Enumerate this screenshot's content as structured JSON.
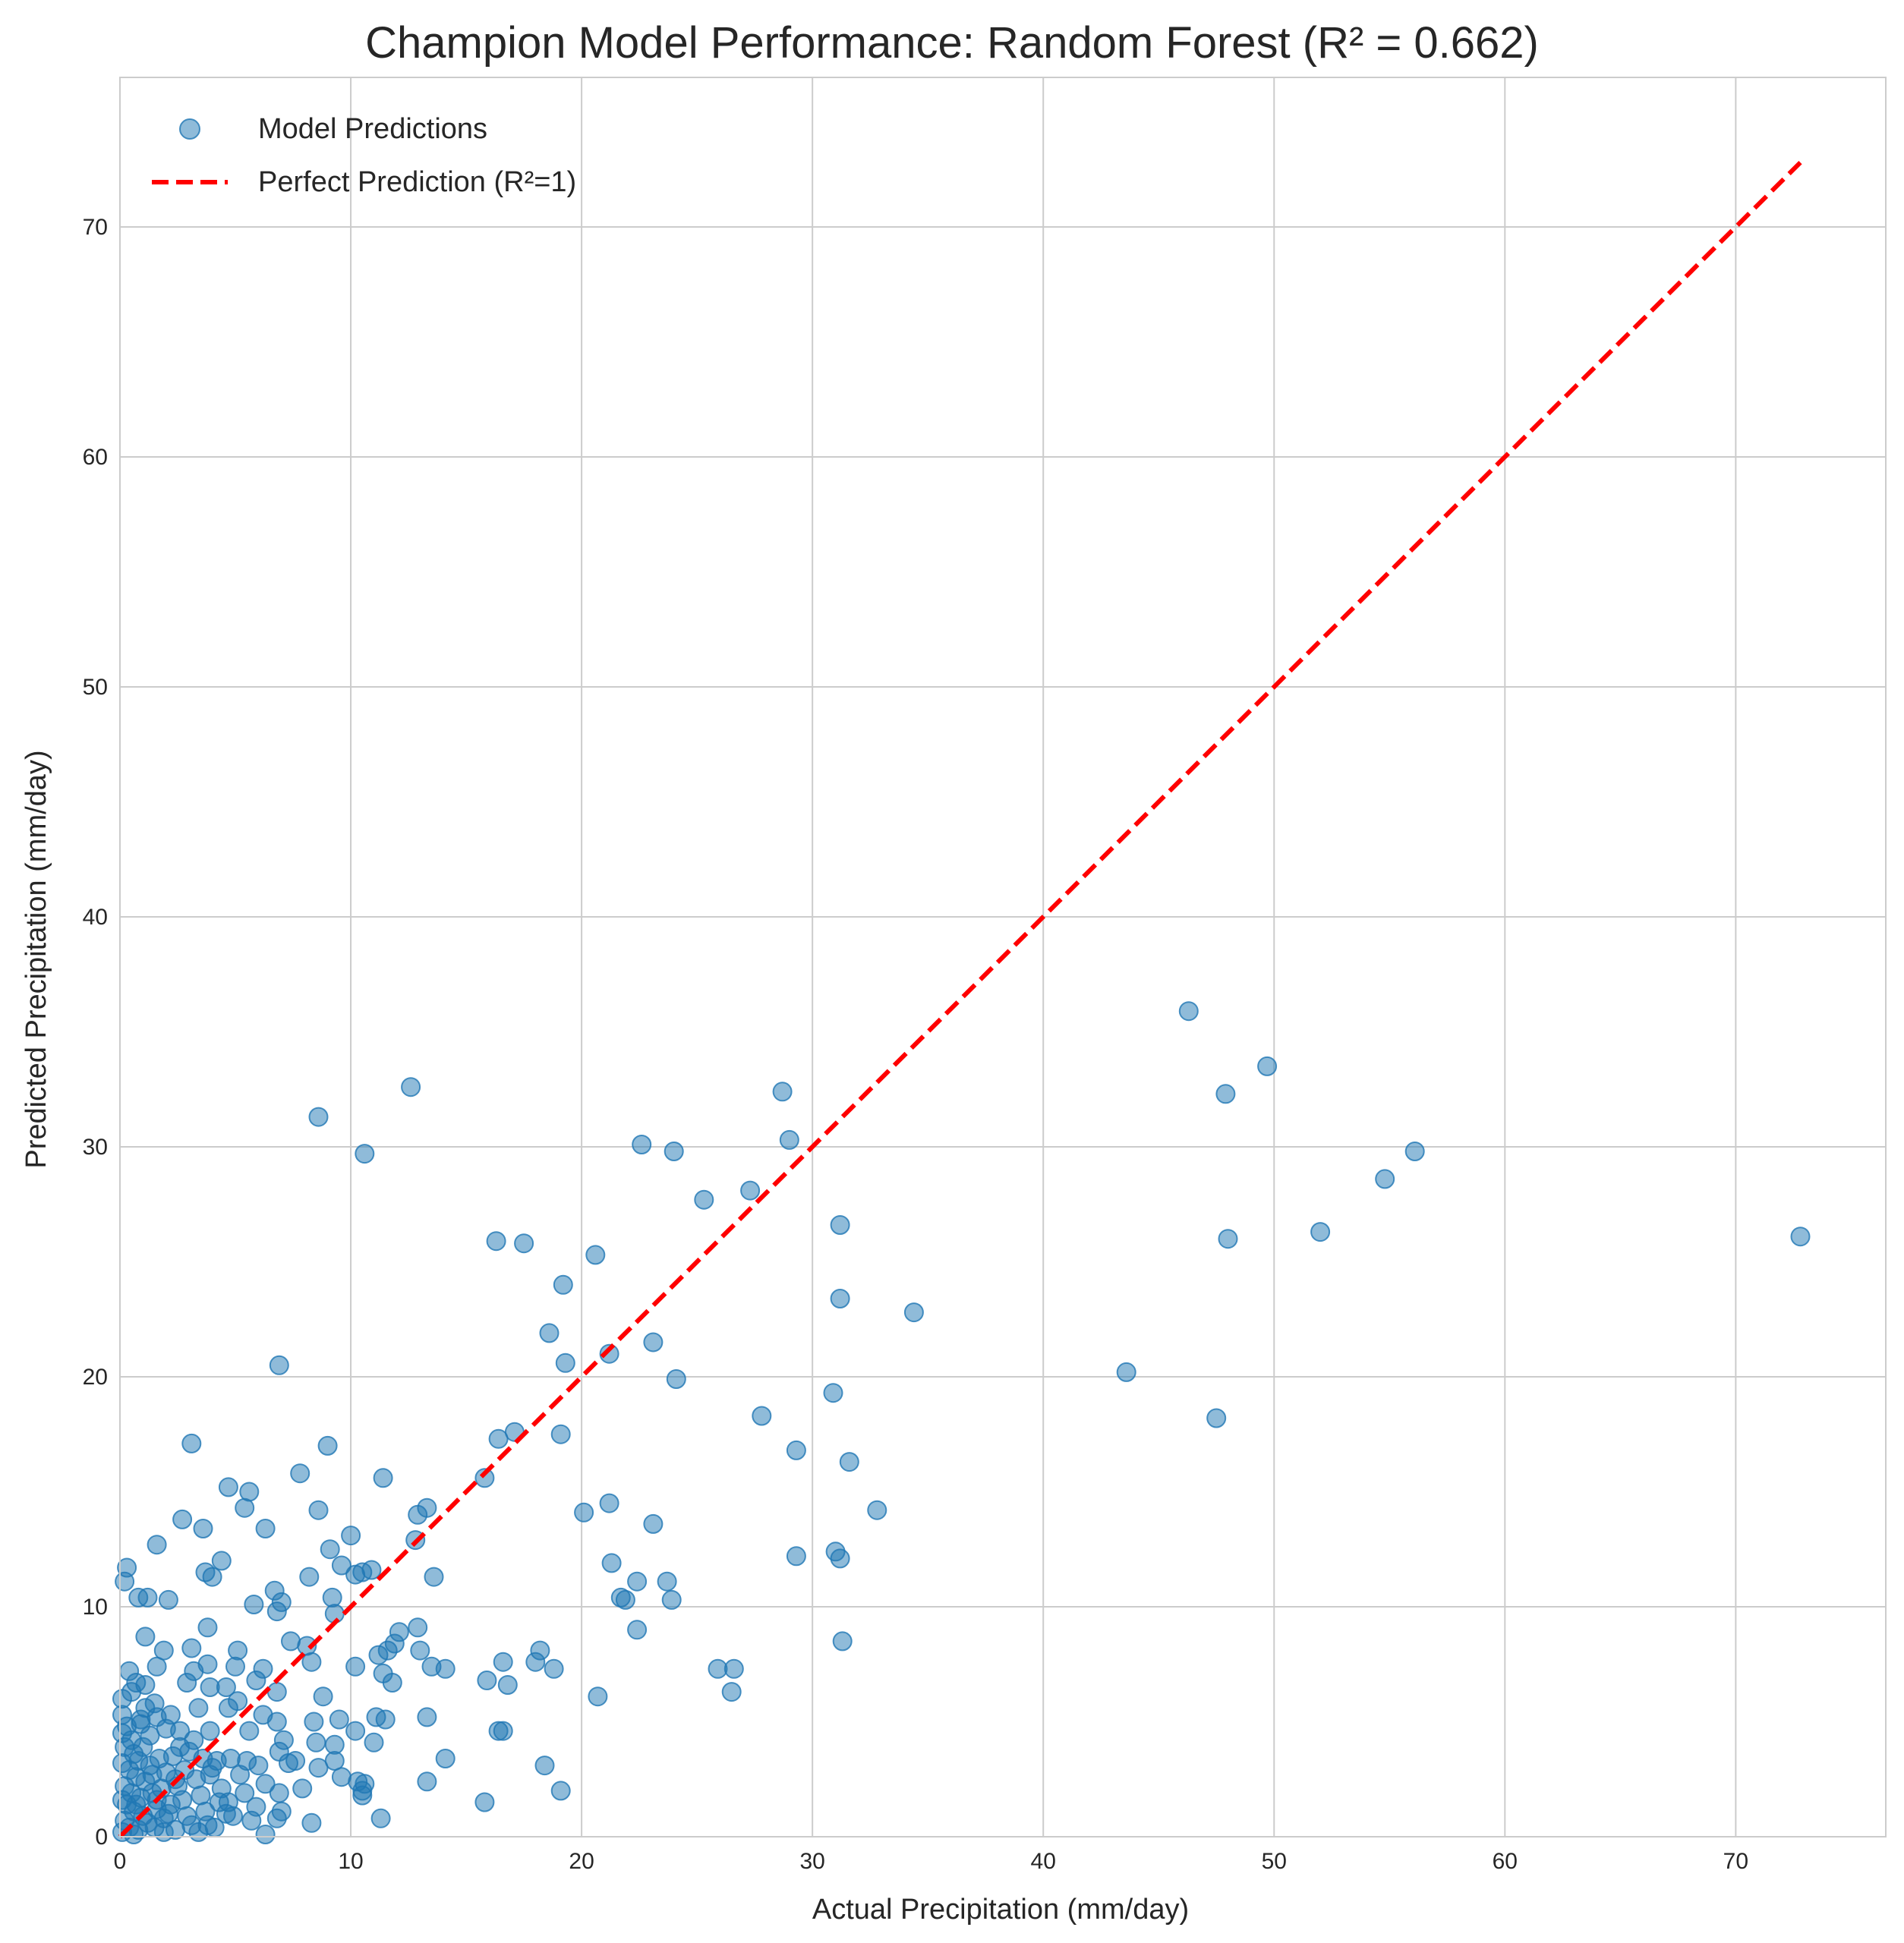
{
  "chart_data": {
    "type": "scatter",
    "title": "Champion Model Performance: Random Forest (R² = 0.662)",
    "xlabel": "Actual Precipitation (mm/day)",
    "ylabel": "Predicted Precipitation (mm/day)",
    "xlim": [
      0,
      76.5
    ],
    "ylim": [
      0,
      76.5
    ],
    "xticks": [
      0,
      10,
      20,
      30,
      40,
      50,
      60,
      70
    ],
    "yticks": [
      0,
      10,
      20,
      30,
      40,
      50,
      60,
      70
    ],
    "grid": true,
    "legend_position": "upper-left",
    "colors": {
      "points": "#1f77b4",
      "reference_line": "#ff0000",
      "grid": "#cccccc",
      "spine": "#cccccc"
    },
    "series": [
      {
        "name": "Model Predictions",
        "kind": "scatter",
        "points": [
          [
            46.3,
            35.9
          ],
          [
            49.7,
            33.5
          ],
          [
            47.9,
            32.3
          ],
          [
            56.1,
            29.8
          ],
          [
            54.8,
            28.6
          ],
          [
            52.0,
            26.3
          ],
          [
            48.0,
            26.0
          ],
          [
            72.8,
            26.1
          ],
          [
            43.6,
            20.2
          ],
          [
            47.5,
            18.2
          ],
          [
            12.6,
            32.6
          ],
          [
            8.6,
            31.3
          ],
          [
            10.6,
            29.7
          ],
          [
            28.7,
            32.4
          ],
          [
            29.0,
            30.3
          ],
          [
            22.6,
            30.1
          ],
          [
            24.0,
            29.8
          ],
          [
            25.3,
            27.7
          ],
          [
            27.3,
            28.1
          ],
          [
            31.2,
            26.6
          ],
          [
            16.3,
            25.9
          ],
          [
            17.5,
            25.8
          ],
          [
            20.6,
            25.3
          ],
          [
            19.2,
            24.0
          ],
          [
            31.2,
            23.4
          ],
          [
            34.4,
            22.8
          ],
          [
            18.6,
            21.9
          ],
          [
            23.1,
            21.5
          ],
          [
            21.2,
            21.0
          ],
          [
            19.3,
            20.6
          ],
          [
            6.9,
            20.5
          ],
          [
            24.1,
            19.9
          ],
          [
            30.9,
            19.3
          ],
          [
            27.8,
            18.3
          ],
          [
            19.1,
            17.5
          ],
          [
            17.1,
            17.6
          ],
          [
            16.4,
            17.3
          ],
          [
            29.3,
            16.8
          ],
          [
            31.6,
            16.3
          ],
          [
            3.1,
            17.1
          ],
          [
            9.0,
            17.0
          ],
          [
            7.8,
            15.8
          ],
          [
            11.4,
            15.6
          ],
          [
            15.8,
            15.6
          ],
          [
            4.7,
            15.2
          ],
          [
            5.6,
            15.0
          ],
          [
            5.4,
            14.3
          ],
          [
            8.6,
            14.2
          ],
          [
            13.3,
            14.3
          ],
          [
            12.9,
            14.0
          ],
          [
            20.1,
            14.1
          ],
          [
            21.2,
            14.5
          ],
          [
            32.8,
            14.2
          ],
          [
            2.7,
            13.8
          ],
          [
            3.6,
            13.4
          ],
          [
            6.3,
            13.4
          ],
          [
            10.0,
            13.1
          ],
          [
            12.8,
            12.9
          ],
          [
            23.1,
            13.6
          ],
          [
            1.6,
            12.7
          ],
          [
            9.1,
            12.5
          ],
          [
            29.3,
            12.2
          ],
          [
            31.0,
            12.4
          ],
          [
            31.2,
            12.1
          ],
          [
            4.4,
            12.0
          ],
          [
            9.6,
            11.8
          ],
          [
            10.9,
            11.6
          ],
          [
            0.3,
            11.7
          ],
          [
            0.2,
            11.1
          ],
          [
            3.7,
            11.5
          ],
          [
            4.0,
            11.3
          ],
          [
            8.2,
            11.3
          ],
          [
            10.5,
            11.5
          ],
          [
            13.6,
            11.3
          ],
          [
            21.3,
            11.9
          ],
          [
            22.4,
            11.1
          ],
          [
            23.7,
            11.1
          ],
          [
            0.8,
            10.4
          ],
          [
            1.2,
            10.4
          ],
          [
            2.1,
            10.3
          ],
          [
            6.7,
            10.7
          ],
          [
            7.0,
            10.2
          ],
          [
            9.2,
            10.4
          ],
          [
            10.2,
            11.4
          ],
          [
            21.7,
            10.4
          ],
          [
            21.9,
            10.3
          ],
          [
            23.9,
            10.3
          ],
          [
            5.8,
            10.1
          ],
          [
            6.8,
            9.8
          ],
          [
            9.3,
            9.7
          ],
          [
            3.8,
            9.1
          ],
          [
            12.9,
            9.1
          ],
          [
            22.4,
            9.0
          ],
          [
            31.3,
            8.5
          ],
          [
            1.1,
            8.7
          ],
          [
            7.4,
            8.5
          ],
          [
            8.1,
            8.3
          ],
          [
            12.1,
            8.9
          ],
          [
            11.9,
            8.4
          ],
          [
            11.6,
            8.1
          ],
          [
            5.1,
            8.1
          ],
          [
            1.9,
            8.1
          ],
          [
            3.1,
            8.2
          ],
          [
            13.0,
            8.1
          ],
          [
            18.2,
            8.1
          ],
          [
            11.2,
            7.9
          ],
          [
            16.6,
            7.6
          ],
          [
            18.0,
            7.6
          ],
          [
            18.8,
            7.3
          ],
          [
            25.9,
            7.3
          ],
          [
            26.6,
            7.3
          ],
          [
            14.1,
            7.3
          ],
          [
            13.5,
            7.4
          ],
          [
            10.2,
            7.4
          ],
          [
            8.3,
            7.6
          ],
          [
            6.2,
            7.3
          ],
          [
            5.0,
            7.4
          ],
          [
            3.8,
            7.5
          ],
          [
            3.2,
            7.2
          ],
          [
            1.6,
            7.4
          ],
          [
            0.4,
            7.2
          ],
          [
            0.7,
            6.7
          ],
          [
            1.1,
            6.6
          ],
          [
            2.9,
            6.7
          ],
          [
            4.6,
            6.5
          ],
          [
            3.9,
            6.5
          ],
          [
            5.9,
            6.8
          ],
          [
            11.4,
            7.1
          ],
          [
            11.8,
            6.7
          ],
          [
            15.9,
            6.8
          ],
          [
            16.8,
            6.6
          ],
          [
            20.7,
            6.1
          ],
          [
            26.5,
            6.3
          ],
          [
            8.8,
            6.1
          ],
          [
            6.8,
            6.3
          ],
          [
            5.1,
            5.9
          ],
          [
            4.7,
            5.6
          ],
          [
            3.4,
            5.6
          ],
          [
            1.5,
            5.8
          ],
          [
            0.5,
            6.3
          ],
          [
            2.2,
            5.3
          ],
          [
            1.6,
            5.2
          ],
          [
            0.9,
            5.1
          ],
          [
            6.2,
            5.3
          ],
          [
            6.8,
            5.0
          ],
          [
            8.4,
            5.0
          ],
          [
            9.5,
            5.1
          ],
          [
            11.1,
            5.2
          ],
          [
            11.5,
            5.1
          ],
          [
            13.3,
            5.2
          ],
          [
            16.4,
            4.6
          ],
          [
            16.6,
            4.6
          ],
          [
            10.2,
            4.6
          ],
          [
            7.1,
            4.2
          ],
          [
            5.6,
            4.6
          ],
          [
            3.9,
            4.6
          ],
          [
            2.6,
            4.6
          ],
          [
            8.5,
            4.1
          ],
          [
            9.3,
            4.0
          ],
          [
            11.0,
            4.1
          ],
          [
            6.9,
            3.7
          ],
          [
            9.3,
            3.3
          ],
          [
            8.6,
            3.0
          ],
          [
            7.6,
            3.3
          ],
          [
            5.5,
            3.3
          ],
          [
            6.0,
            3.1
          ],
          [
            7.3,
            3.2
          ],
          [
            14.1,
            3.4
          ],
          [
            18.4,
            3.1
          ],
          [
            9.6,
            2.6
          ],
          [
            10.3,
            2.4
          ],
          [
            10.5,
            2.0
          ],
          [
            10.6,
            2.3
          ],
          [
            13.3,
            2.4
          ],
          [
            10.5,
            1.8
          ],
          [
            7.9,
            2.1
          ],
          [
            6.9,
            1.9
          ],
          [
            6.3,
            2.3
          ],
          [
            19.1,
            2.0
          ],
          [
            15.8,
            1.5
          ],
          [
            4.7,
            1.5
          ],
          [
            5.9,
            1.3
          ],
          [
            7.0,
            1.1
          ],
          [
            4.9,
            0.9
          ],
          [
            6.8,
            0.8
          ],
          [
            5.7,
            0.7
          ],
          [
            8.3,
            0.6
          ],
          [
            11.3,
            0.8
          ],
          [
            6.3,
            0.1
          ],
          [
            4.1,
            0.4
          ],
          [
            0.1,
            5.3
          ],
          [
            0.3,
            4.8
          ],
          [
            0.5,
            4.2
          ],
          [
            0.2,
            3.9
          ],
          [
            0.6,
            3.6
          ],
          [
            0.8,
            3.3
          ],
          [
            1.0,
            3.9
          ],
          [
            1.3,
            3.1
          ],
          [
            0.4,
            2.9
          ],
          [
            0.7,
            2.6
          ],
          [
            1.1,
            2.4
          ],
          [
            0.2,
            2.2
          ],
          [
            0.5,
            1.9
          ],
          [
            0.9,
            1.7
          ],
          [
            1.4,
            1.9
          ],
          [
            0.3,
            1.4
          ],
          [
            0.6,
            1.1
          ],
          [
            1.0,
            0.9
          ],
          [
            0.2,
            0.7
          ],
          [
            0.4,
            0.4
          ],
          [
            0.8,
            0.3
          ],
          [
            1.2,
            0.6
          ],
          [
            1.6,
            1.2
          ],
          [
            1.8,
            2.1
          ],
          [
            2.0,
            2.8
          ],
          [
            2.3,
            3.5
          ],
          [
            2.5,
            2.2
          ],
          [
            2.7,
            1.6
          ],
          [
            2.9,
            0.9
          ],
          [
            3.1,
            0.5
          ],
          [
            1.5,
            0.4
          ],
          [
            1.9,
            0.8
          ],
          [
            2.2,
            1.4
          ],
          [
            2.4,
            0.3
          ],
          [
            2.8,
            2.9
          ],
          [
            3.0,
            3.7
          ],
          [
            3.3,
            2.5
          ],
          [
            3.5,
            1.8
          ],
          [
            3.7,
            1.1
          ],
          [
            3.9,
            2.7
          ],
          [
            4.2,
            3.3
          ],
          [
            4.4,
            2.1
          ],
          [
            4.6,
            1.0
          ],
          [
            1.7,
            3.4
          ],
          [
            1.3,
            4.4
          ],
          [
            0.9,
            4.9
          ],
          [
            0.1,
            6.0
          ],
          [
            0.1,
            4.5
          ],
          [
            0.1,
            3.2
          ],
          [
            0.1,
            1.6
          ],
          [
            0.1,
            0.2
          ],
          [
            0.6,
            0.1
          ],
          [
            1.9,
            0.2
          ],
          [
            3.4,
            0.2
          ],
          [
            2.6,
            3.9
          ],
          [
            3.2,
            4.2
          ],
          [
            1.1,
            5.6
          ],
          [
            2.0,
            4.7
          ],
          [
            4.8,
            3.4
          ],
          [
            5.2,
            2.7
          ],
          [
            5.4,
            1.9
          ],
          [
            4.0,
            3.0
          ],
          [
            2.1,
            1.0
          ],
          [
            1.4,
            2.7
          ],
          [
            0.7,
            1.4
          ],
          [
            3.6,
            3.4
          ],
          [
            2.4,
            2.5
          ],
          [
            1.6,
            1.6
          ],
          [
            3.8,
            0.5
          ],
          [
            4.3,
            1.5
          ]
        ]
      },
      {
        "name": "Perfect Prediction (R²=1)",
        "kind": "line",
        "style": "dashed",
        "x": [
          0,
          72.8
        ],
        "y": [
          0,
          72.8
        ]
      }
    ]
  }
}
